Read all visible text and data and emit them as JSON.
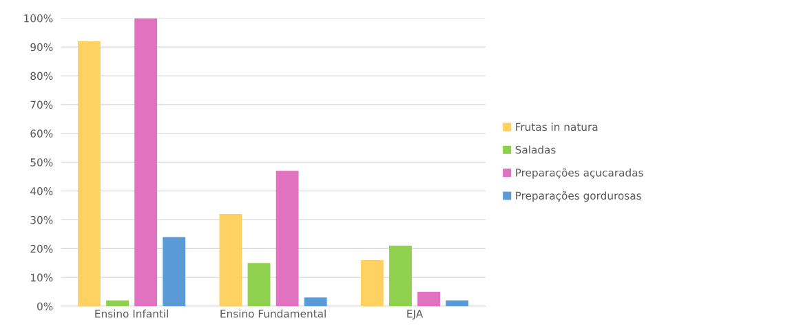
{
  "chart_data": {
    "type": "bar",
    "categories": [
      "Ensino Infantil",
      "Ensino Fundamental",
      "EJA"
    ],
    "series": [
      {
        "name": "Frutas in natura",
        "color": "#fdd162",
        "values": [
          92,
          32,
          16
        ]
      },
      {
        "name": "Saladas",
        "color": "#8fd14f",
        "values": [
          2,
          15,
          21
        ]
      },
      {
        "name": "Preparações açucaradas",
        "color": "#e072c0",
        "values": [
          100,
          47,
          5
        ]
      },
      {
        "name": "Preparações gordurosas",
        "color": "#5b9bd5",
        "values": [
          24,
          3,
          2
        ]
      }
    ],
    "ylim": [
      0,
      100
    ],
    "yticks": [
      {
        "value": 0,
        "label": "0%"
      },
      {
        "value": 10,
        "label": "10%"
      },
      {
        "value": 20,
        "label": "20%"
      },
      {
        "value": 30,
        "label": "30%"
      },
      {
        "value": 40,
        "label": "40%"
      },
      {
        "value": 50,
        "label": "50%"
      },
      {
        "value": 60,
        "label": "60%"
      },
      {
        "value": 70,
        "label": "70%"
      },
      {
        "value": 80,
        "label": "80%"
      },
      {
        "value": 90,
        "label": "90%"
      },
      {
        "value": 100,
        "label": "100%"
      }
    ],
    "grid": "y",
    "legend": "right"
  }
}
